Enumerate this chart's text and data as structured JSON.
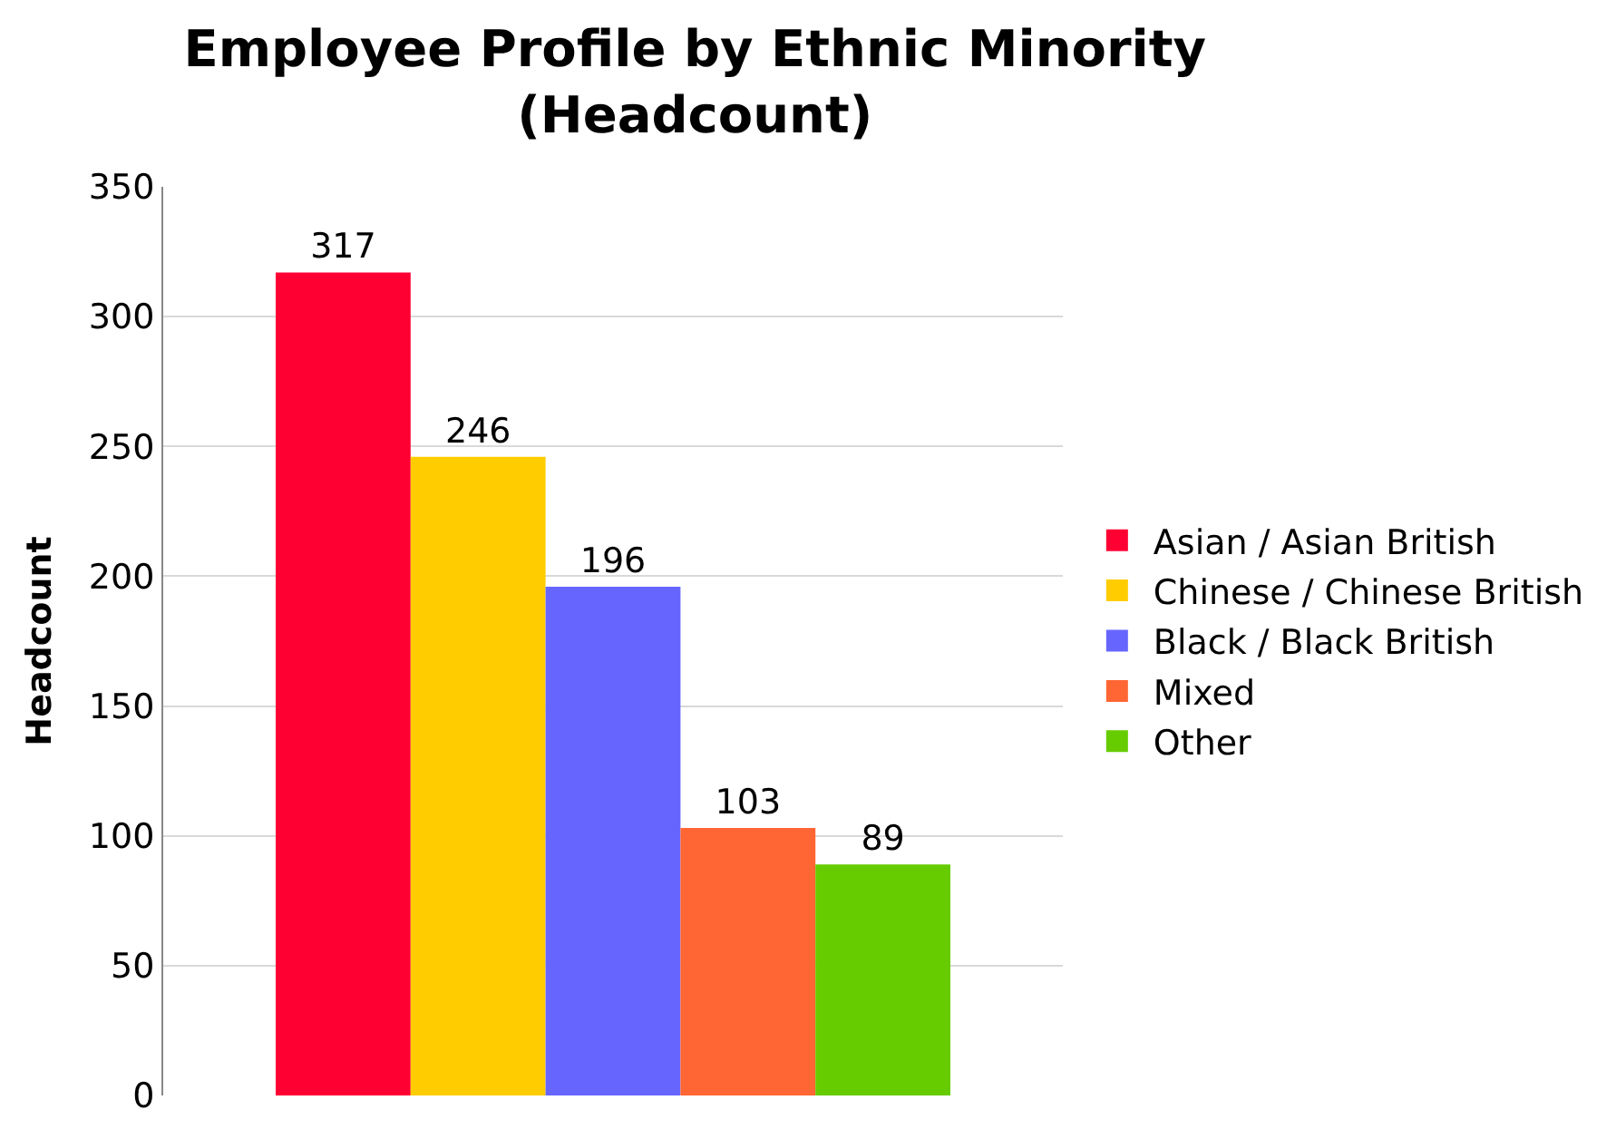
{
  "chart_data": {
    "type": "bar",
    "title": "Employee Profile by Ethnic Minority\n(Headcount)",
    "ylabel": "Headcount",
    "categories": [
      null
    ],
    "series": [
      {
        "name": "Asian / Asian British",
        "color": "#ff0033",
        "values": [
          317
        ]
      },
      {
        "name": "Chinese / Chinese British",
        "color": "#ffcc00",
        "values": [
          246
        ]
      },
      {
        "name": "Black / Black British",
        "color": "#6666ff",
        "values": [
          196
        ]
      },
      {
        "name": "Mixed",
        "color": "#ff6633",
        "values": [
          103
        ]
      },
      {
        "name": "Other",
        "color": "#66cc00",
        "values": [
          89
        ]
      }
    ],
    "ylim": [
      0,
      350
    ],
    "yticks": [
      0,
      50,
      100,
      150,
      200,
      250,
      300,
      350
    ],
    "grid": "y",
    "legend": "right",
    "data_labels": true
  }
}
